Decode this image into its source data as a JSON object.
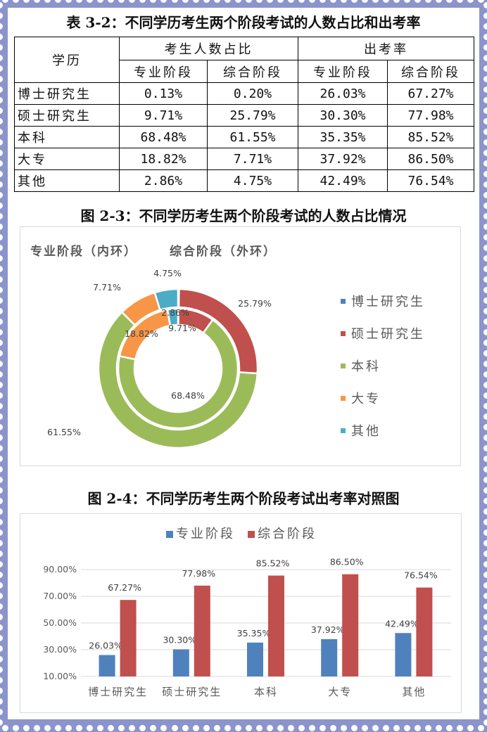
{
  "table": {
    "title": "表 3-2：不同学历考生两个阶段考试的人数占比和出考率",
    "header": {
      "col0": "学历",
      "group1": "考生人数占比",
      "group2": "出考率",
      "sub": [
        "专业阶段",
        "综合阶段",
        "专业阶段",
        "综合阶段"
      ]
    },
    "rows": [
      {
        "label": "博士研究生",
        "cells": [
          "0.13%",
          "0.20%",
          "26.03%",
          "67.27%"
        ]
      },
      {
        "label": "硕士研究生",
        "cells": [
          "9.71%",
          "25.79%",
          "30.30%",
          "77.98%"
        ]
      },
      {
        "label": "本科",
        "cells": [
          "68.48%",
          "61.55%",
          "35.35%",
          "85.52%"
        ]
      },
      {
        "label": "大专",
        "cells": [
          "18.82%",
          "7.71%",
          "37.92%",
          "86.50%"
        ]
      },
      {
        "label": "其他",
        "cells": [
          "2.86%",
          "4.75%",
          "42.49%",
          "76.54%"
        ]
      }
    ]
  },
  "colors": {
    "doctor": "#4f81bd",
    "master": "#c0504d",
    "bachelor": "#9bbb59",
    "college": "#f79646",
    "other": "#4bacc6",
    "frame": "#8b94cb"
  },
  "fig23": {
    "title": "图 2-3：不同学历考生两个阶段考试的人数占比情况",
    "subtitle_inner": "专业阶段（内环）",
    "subtitle_outer": "综合阶段（外环）",
    "legend": [
      "博士研究生",
      "硕士研究生",
      "本科",
      "大专",
      "其他"
    ]
  },
  "fig24": {
    "title": "图 2-4：不同学历考生两个阶段考试出考率对照图",
    "legend": [
      "专业阶段",
      "综合阶段"
    ]
  },
  "chart_data": [
    {
      "type": "pie",
      "subtype": "doughnut",
      "title": "图 2-3：不同学历考生两个阶段考试的人数占比情况",
      "subtitle": "专业阶段（内环） 综合阶段（外环）",
      "categories": [
        "博士研究生",
        "硕士研究生",
        "本科",
        "大专",
        "其他"
      ],
      "series": [
        {
          "name": "专业阶段（内环）",
          "values": [
            0.13,
            9.71,
            68.48,
            18.82,
            2.86
          ],
          "labels": [
            "",
            "9.71%",
            "68.48%",
            "18.82%",
            "2.86%"
          ]
        },
        {
          "name": "综合阶段（外环）",
          "values": [
            0.2,
            25.79,
            61.55,
            7.71,
            4.75
          ],
          "labels": [
            "",
            "25.79%",
            "61.55%",
            "7.71%",
            "4.75%"
          ]
        }
      ],
      "legend_position": "right"
    },
    {
      "type": "bar",
      "title": "图 2-4：不同学历考生两个阶段考试出考率对照图",
      "categories": [
        "博士研究生",
        "硕士研究生",
        "本科",
        "大专",
        "其他"
      ],
      "series": [
        {
          "name": "专业阶段",
          "values": [
            26.03,
            30.3,
            35.35,
            37.92,
            42.49
          ]
        },
        {
          "name": "综合阶段",
          "values": [
            67.27,
            77.98,
            85.52,
            86.5,
            76.54
          ]
        }
      ],
      "yticks": [
        "10.00%",
        "30.00%",
        "50.00%",
        "70.00%",
        "90.00%"
      ],
      "ylim": [
        10,
        90
      ],
      "grid": true,
      "legend_position": "top",
      "xlabel": "",
      "ylabel": ""
    }
  ]
}
